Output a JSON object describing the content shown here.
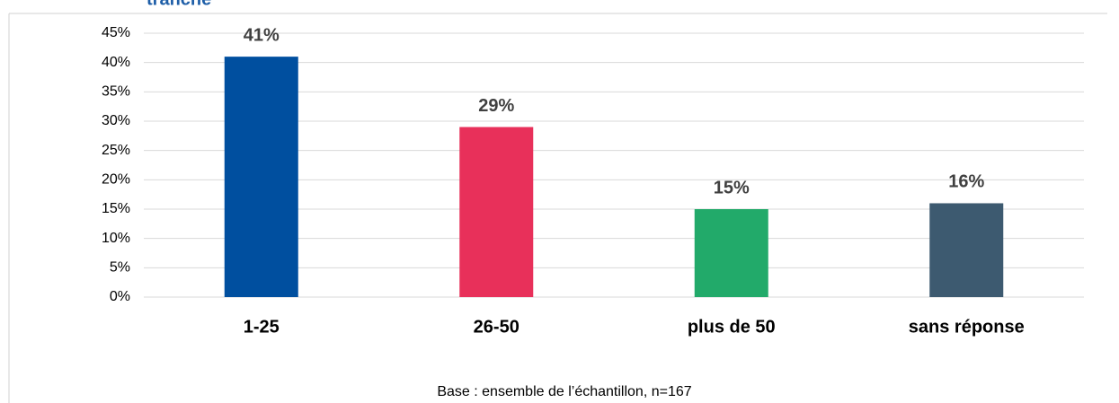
{
  "chart_data": {
    "type": "bar",
    "title": "tranche",
    "categories": [
      "1-25",
      "26-50",
      "plus de 50",
      "sans réponse"
    ],
    "values": [
      41,
      29,
      15,
      16
    ],
    "value_labels": [
      "41%",
      "29%",
      "15%",
      "16%"
    ],
    "colors": [
      "#004f9f",
      "#e8305a",
      "#22aa6a",
      "#3d5a70"
    ],
    "ylim": [
      0,
      45
    ],
    "yticks": [
      {
        "value": 0,
        "label": "0%"
      },
      {
        "value": 5,
        "label": "5%"
      },
      {
        "value": 10,
        "label": "10%"
      },
      {
        "value": 15,
        "label": "15%"
      },
      {
        "value": 20,
        "label": "20%"
      },
      {
        "value": 25,
        "label": "25%"
      },
      {
        "value": 30,
        "label": "30%"
      },
      {
        "value": 35,
        "label": "35%"
      },
      {
        "value": 40,
        "label": "40%"
      },
      {
        "value": 45,
        "label": "45%"
      }
    ],
    "grid": true,
    "footnote": "Base : ensemble de l’échantillon, n=167"
  }
}
